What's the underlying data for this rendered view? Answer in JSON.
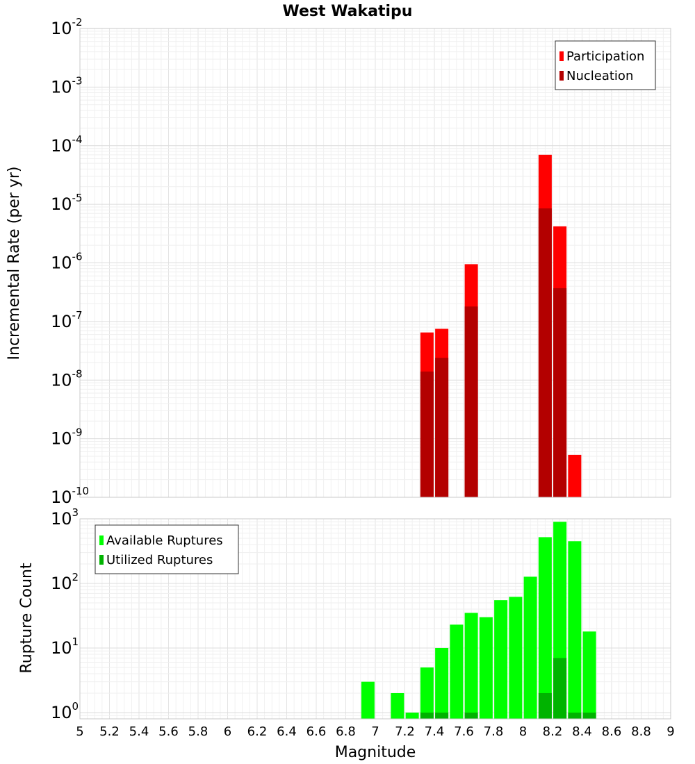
{
  "chart_data": [
    {
      "type": "bar",
      "panel": "top",
      "title": "West Wakatipu",
      "xlabel": "Magnitude",
      "ylabel": "Incremental Rate (per yr)",
      "yscale": "log",
      "xlim": [
        5,
        9
      ],
      "ylim": [
        1e-10,
        0.01
      ],
      "yticks": [
        {
          "base": "10",
          "exp": "-2"
        },
        {
          "base": "10",
          "exp": "-3"
        },
        {
          "base": "10",
          "exp": "-4"
        },
        {
          "base": "10",
          "exp": "-5"
        },
        {
          "base": "10",
          "exp": "-6"
        },
        {
          "base": "10",
          "exp": "-7"
        },
        {
          "base": "10",
          "exp": "-8"
        },
        {
          "base": "10",
          "exp": "-9"
        },
        {
          "base": "10",
          "exp": "-10"
        }
      ],
      "grid": true,
      "legend_position": "top-right",
      "series": [
        {
          "name": "Participation",
          "color": "#ff0000",
          "points": [
            {
              "x": 7.35,
              "y": 6.5e-08
            },
            {
              "x": 7.45,
              "y": 7.5e-08
            },
            {
              "x": 7.65,
              "y": 9.5e-07
            },
            {
              "x": 8.15,
              "y": 7e-05
            },
            {
              "x": 8.25,
              "y": 4.2e-06
            },
            {
              "x": 8.35,
              "y": 5.3e-10
            }
          ]
        },
        {
          "name": "Nucleation",
          "color": "#b30000",
          "points": [
            {
              "x": 7.35,
              "y": 1.4e-08
            },
            {
              "x": 7.45,
              "y": 2.4e-08
            },
            {
              "x": 7.65,
              "y": 1.8e-07
            },
            {
              "x": 8.15,
              "y": 8.5e-06
            },
            {
              "x": 8.25,
              "y": 3.7e-07
            }
          ]
        }
      ]
    },
    {
      "type": "bar",
      "panel": "bottom",
      "xlabel": "Magnitude",
      "ylabel": "Rupture Count",
      "yscale": "log",
      "xlim": [
        5,
        9
      ],
      "ylim": [
        0.8,
        1000
      ],
      "xticks": [
        "5",
        "5.2",
        "5.4",
        "5.6",
        "5.8",
        "6",
        "6.2",
        "6.4",
        "6.6",
        "6.8",
        "7",
        "7.2",
        "7.4",
        "7.6",
        "7.8",
        "8",
        "8.2",
        "8.4",
        "8.6",
        "8.8",
        "9"
      ],
      "yticks": [
        {
          "base": "10",
          "exp": "3"
        },
        {
          "base": "10",
          "exp": "2"
        },
        {
          "base": "10",
          "exp": "1"
        },
        {
          "base": "10",
          "exp": "0"
        }
      ],
      "grid": true,
      "legend_position": "top-left",
      "series": [
        {
          "name": "Available Ruptures",
          "color": "#00ff00",
          "points": [
            {
              "x": 6.95,
              "y": 3
            },
            {
              "x": 7.15,
              "y": 2
            },
            {
              "x": 7.25,
              "y": 1
            },
            {
              "x": 7.35,
              "y": 5
            },
            {
              "x": 7.45,
              "y": 10
            },
            {
              "x": 7.55,
              "y": 23
            },
            {
              "x": 7.65,
              "y": 35
            },
            {
              "x": 7.75,
              "y": 30
            },
            {
              "x": 7.85,
              "y": 55
            },
            {
              "x": 7.95,
              "y": 62
            },
            {
              "x": 8.05,
              "y": 127
            },
            {
              "x": 8.15,
              "y": 520
            },
            {
              "x": 8.25,
              "y": 900
            },
            {
              "x": 8.35,
              "y": 450
            },
            {
              "x": 8.45,
              "y": 18
            }
          ]
        },
        {
          "name": "Utilized Ruptures",
          "color": "#00b300",
          "points": [
            {
              "x": 7.35,
              "y": 1
            },
            {
              "x": 7.45,
              "y": 1
            },
            {
              "x": 7.65,
              "y": 1
            },
            {
              "x": 8.15,
              "y": 2
            },
            {
              "x": 8.25,
              "y": 7
            },
            {
              "x": 8.35,
              "y": 1
            },
            {
              "x": 8.45,
              "y": 1
            }
          ]
        }
      ]
    }
  ]
}
